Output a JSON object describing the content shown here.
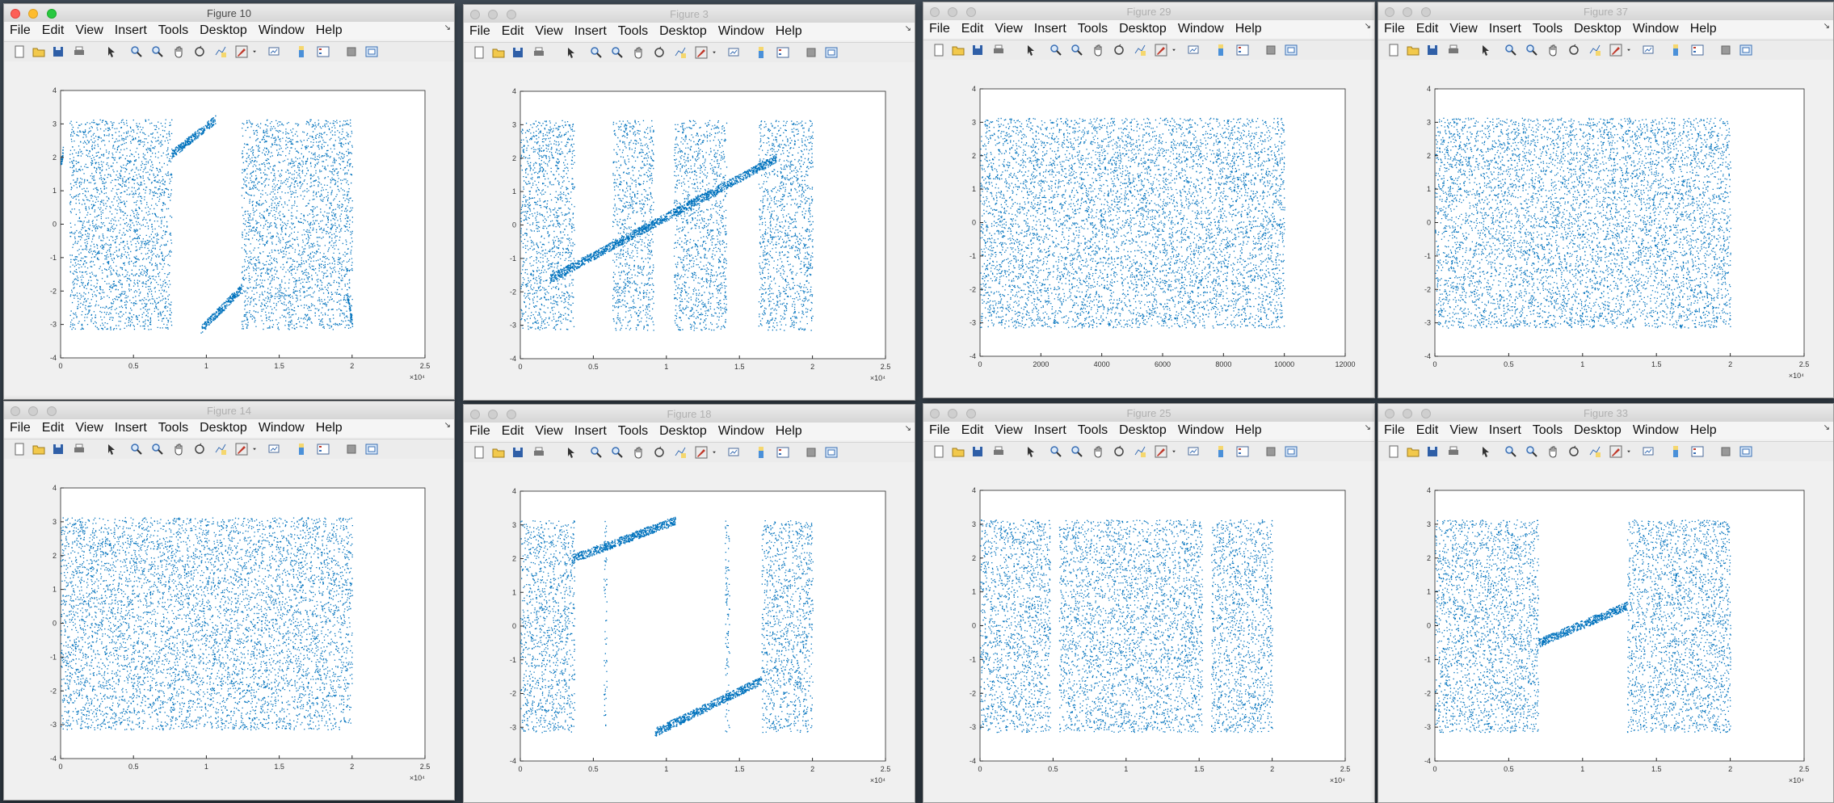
{
  "menu": [
    "File",
    "Edit",
    "View",
    "Insert",
    "Tools",
    "Desktop",
    "Window",
    "Help"
  ],
  "toolbar_icons": [
    "new-figure-icon",
    "open-file-icon",
    "save-icon",
    "print-icon",
    "pointer-icon",
    "zoom-in-icon",
    "zoom-out-icon",
    "pan-icon",
    "rotate-3d-icon",
    "data-cursor-icon",
    "brush-icon",
    "dropdown-arrow-icon",
    "link-plot-icon",
    "colorbar-icon",
    "legend-icon",
    "hide-plot-tools-icon",
    "show-plot-tools-icon"
  ],
  "colors": {
    "marker": "#0072bd",
    "axes_bg": "#ffffff",
    "figure_bg": "#f0f0f0"
  },
  "windows": [
    {
      "title": "Figure 10",
      "active": true,
      "chart_data": {
        "type": "scatter",
        "title": "",
        "xlabel": "",
        "ylabel": "",
        "xlim": [
          0,
          25000
        ],
        "ylim": [
          -4,
          4
        ],
        "x_ticks": [
          "0",
          "0.5",
          "1",
          "1.5",
          "2",
          "2.5"
        ],
        "y_ticks": [
          "-4",
          "-3",
          "-2",
          "-1",
          "0",
          "1",
          "2",
          "3",
          "4"
        ],
        "x_exponent": "×10⁴",
        "series": [
          {
            "segments": [
              {
                "x": [
                  0,
                  150
                ],
                "kind": "line",
                "y": [
                  1.8,
                  2.2
                ]
              },
              {
                "x": [
                  600,
                  7600
                ],
                "kind": "noise"
              },
              {
                "x": [
                  7600,
                  10600
                ],
                "kind": "line",
                "y": [
                  2.1,
                  3.14
                ]
              },
              {
                "x": [
                  12400,
                  20000
                ],
                "kind": "noise"
              },
              {
                "x": [
                  9600,
                  12400
                ],
                "kind": "line",
                "y": [
                  -3.14,
                  -1.9
                ]
              },
              {
                "x": [
                  19600,
                  20000
                ],
                "kind": "line",
                "y": [
                  -2.0,
                  -3.0
                ]
              }
            ]
          }
        ]
      }
    },
    {
      "title": "Figure 3",
      "active": false,
      "chart_data": {
        "type": "scatter",
        "title": "",
        "xlabel": "",
        "ylabel": "",
        "xlim": [
          0,
          25000
        ],
        "ylim": [
          -4,
          4
        ],
        "x_ticks": [
          "0",
          "0.5",
          "1",
          "1.5",
          "2",
          "2.5"
        ],
        "y_ticks": [
          "-4",
          "-3",
          "-2",
          "-1",
          "0",
          "1",
          "2",
          "3",
          "4"
        ],
        "x_exponent": "×10⁴",
        "series": [
          {
            "segments": [
              {
                "x": [
                  0,
                  3700
                ],
                "kind": "noise"
              },
              {
                "x": [
                  6300,
                  9100
                ],
                "kind": "noise"
              },
              {
                "x": [
                  10500,
                  14100
                ],
                "kind": "noise"
              },
              {
                "x": [
                  16300,
                  20000
                ],
                "kind": "noise"
              },
              {
                "x": [
                  2000,
                  17500
                ],
                "kind": "line",
                "y": [
                  -1.6,
                  2.0
                ]
              }
            ]
          }
        ]
      }
    },
    {
      "title": "Figure 29",
      "active": false,
      "chart_data": {
        "type": "scatter",
        "title": "",
        "xlabel": "",
        "ylabel": "",
        "xlim": [
          0,
          12000
        ],
        "ylim": [
          -4,
          4
        ],
        "x_ticks": [
          "0",
          "2000",
          "4000",
          "6000",
          "8000",
          "10000",
          "12000"
        ],
        "y_ticks": [
          "-4",
          "-3",
          "-2",
          "-1",
          "0",
          "1",
          "2",
          "3",
          "4"
        ],
        "x_exponent": "",
        "series": [
          {
            "segments": [
              {
                "x": [
                  0,
                  10000
                ],
                "kind": "noise"
              }
            ]
          }
        ]
      }
    },
    {
      "title": "Figure 37",
      "active": false,
      "chart_data": {
        "type": "scatter",
        "title": "",
        "xlabel": "",
        "ylabel": "",
        "xlim": [
          0,
          25000
        ],
        "ylim": [
          -4,
          4
        ],
        "x_ticks": [
          "0",
          "0.5",
          "1",
          "1.5",
          "2",
          "2.5"
        ],
        "y_ticks": [
          "-4",
          "-3",
          "-2",
          "-1",
          "0",
          "1",
          "2",
          "3",
          "4"
        ],
        "x_exponent": "×10⁴",
        "series": [
          {
            "segments": [
              {
                "x": [
                  0,
                  9400
                ],
                "kind": "noise"
              },
              {
                "x": [
                  10600,
                  20000
                ],
                "kind": "noise"
              },
              {
                "x": [
                  9400,
                  10600
                ],
                "kind": "noise"
              }
            ]
          }
        ]
      }
    },
    {
      "title": "Figure 14",
      "active": false,
      "chart_data": {
        "type": "scatter",
        "title": "",
        "xlabel": "",
        "ylabel": "",
        "xlim": [
          0,
          25000
        ],
        "ylim": [
          -4,
          4
        ],
        "x_ticks": [
          "0",
          "0.5",
          "1",
          "1.5",
          "2",
          "2.5"
        ],
        "y_ticks": [
          "-4",
          "-3",
          "-2",
          "-1",
          "0",
          "1",
          "2",
          "3",
          "4"
        ],
        "x_exponent": "×10⁴",
        "series": [
          {
            "segments": [
              {
                "x": [
                  0,
                  20000
                ],
                "kind": "noise"
              }
            ]
          }
        ]
      }
    },
    {
      "title": "Figure 18",
      "active": false,
      "chart_data": {
        "type": "scatter",
        "title": "",
        "xlabel": "",
        "ylabel": "",
        "xlim": [
          0,
          25000
        ],
        "ylim": [
          -4,
          4
        ],
        "x_ticks": [
          "0",
          "0.5",
          "1",
          "1.5",
          "2",
          "2.5"
        ],
        "y_ticks": [
          "-4",
          "-3",
          "-2",
          "-1",
          "0",
          "1",
          "2",
          "3",
          "4"
        ],
        "x_exponent": "×10⁴",
        "series": [
          {
            "segments": [
              {
                "x": [
                  0,
                  3700
                ],
                "kind": "noise"
              },
              {
                "x": [
                  3500,
                  10600
                ],
                "kind": "line",
                "y": [
                  2.0,
                  3.14
                ]
              },
              {
                "x": [
                  9200,
                  16500
                ],
                "kind": "line",
                "y": [
                  -3.14,
                  -1.6
                ]
              },
              {
                "x": [
                  16500,
                  20000
                ],
                "kind": "noise"
              },
              {
                "x": [
                  5700,
                  5900
                ],
                "kind": "noise"
              },
              {
                "x": [
                  14000,
                  14300
                ],
                "kind": "noise"
              }
            ]
          }
        ]
      }
    },
    {
      "title": "Figure 25",
      "active": false,
      "chart_data": {
        "type": "scatter",
        "title": "",
        "xlabel": "",
        "ylabel": "",
        "xlim": [
          0,
          25000
        ],
        "ylim": [
          -4,
          4
        ],
        "x_ticks": [
          "0",
          "0.5",
          "1",
          "1.5",
          "2",
          "2.5"
        ],
        "y_ticks": [
          "-4",
          "-3",
          "-2",
          "-1",
          "0",
          "1",
          "2",
          "3",
          "4"
        ],
        "x_exponent": "×10⁴",
        "series": [
          {
            "segments": [
              {
                "x": [
                  0,
                  4800
                ],
                "kind": "noise"
              },
              {
                "x": [
                  5400,
                  15200
                ],
                "kind": "noise"
              },
              {
                "x": [
                  15800,
                  20000
                ],
                "kind": "noise"
              }
            ]
          }
        ]
      }
    },
    {
      "title": "Figure 33",
      "active": false,
      "chart_data": {
        "type": "scatter",
        "title": "",
        "xlabel": "",
        "ylabel": "",
        "xlim": [
          0,
          25000
        ],
        "ylim": [
          -4,
          4
        ],
        "x_ticks": [
          "0",
          "0.5",
          "1",
          "1.5",
          "2",
          "2.5"
        ],
        "y_ticks": [
          "-4",
          "-3",
          "-2",
          "-1",
          "0",
          "1",
          "2",
          "3",
          "4"
        ],
        "x_exponent": "×10⁴",
        "series": [
          {
            "segments": [
              {
                "x": [
                  0,
                  7000
                ],
                "kind": "noise"
              },
              {
                "x": [
                  13000,
                  20000
                ],
                "kind": "noise"
              },
              {
                "x": [
                  7000,
                  13000
                ],
                "kind": "line",
                "y": [
                  -0.5,
                  0.6
                ]
              }
            ]
          }
        ]
      }
    }
  ]
}
